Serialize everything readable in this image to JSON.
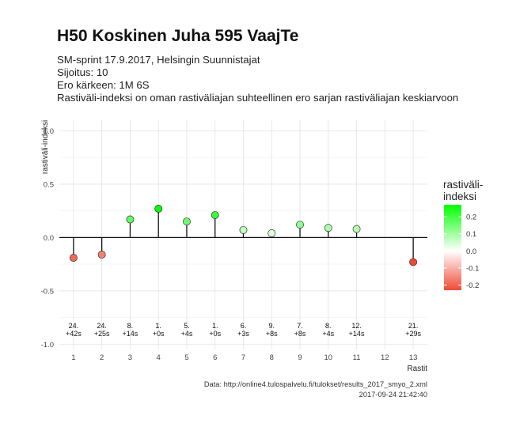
{
  "chart_data": {
    "type": "scatter",
    "title": "H50 Koskinen Juha 595 VaajTe",
    "subtitles": [
      "SM-sprint 17.9.2017, Helsingin Suunnistajat",
      "Sijoitus: 10",
      "Ero kärkeen: 1M 6S",
      "Rastiväli-indeksi on oman rastiväliajan suhteellinen ero sarjan rastiväliajan keskiarvoon"
    ],
    "xlabel": "Rastit",
    "ylabel": "rastiväli-indeksi",
    "xlim": [
      0.5,
      13.5
    ],
    "ylim": [
      -1.05,
      1.1
    ],
    "x_ticks": [
      "1",
      "2",
      "3",
      "4",
      "5",
      "6",
      "7",
      "8",
      "9",
      "10",
      "11",
      "12",
      "13"
    ],
    "y_ticks": [
      "1.0",
      "0.5",
      "0.0",
      "-0.5",
      "-1.0"
    ],
    "grid": true,
    "points": [
      {
        "x": 1,
        "y": -0.19,
        "rank": "24.",
        "diff": "+42s"
      },
      {
        "x": 2,
        "y": -0.16,
        "rank": "24.",
        "diff": "+25s"
      },
      {
        "x": 3,
        "y": 0.17,
        "rank": "8.",
        "diff": "+14s"
      },
      {
        "x": 4,
        "y": 0.27,
        "rank": "1.",
        "diff": "+0s"
      },
      {
        "x": 5,
        "y": 0.15,
        "rank": "5.",
        "diff": "+4s"
      },
      {
        "x": 6,
        "y": 0.21,
        "rank": "1.",
        "diff": "+0s"
      },
      {
        "x": 7,
        "y": 0.07,
        "rank": "6.",
        "diff": "+3s"
      },
      {
        "x": 8,
        "y": 0.04,
        "rank": "9.",
        "diff": "+8s"
      },
      {
        "x": 9,
        "y": 0.12,
        "rank": "7.",
        "diff": "+8s"
      },
      {
        "x": 10,
        "y": 0.09,
        "rank": "8.",
        "diff": "+4s"
      },
      {
        "x": 11,
        "y": 0.08,
        "rank": "12.",
        "diff": "+14s"
      },
      {
        "x": 13,
        "y": -0.23,
        "rank": "21.",
        "diff": "+29s"
      }
    ],
    "legend": {
      "title_line1": "rastiväli-",
      "title_line2": "indeksi",
      "placement": "right",
      "range": [
        -0.23,
        0.27
      ],
      "ticks": [
        "0.2",
        "0.1",
        "0.0",
        "-0.1",
        "-0.2"
      ],
      "tick_values": [
        0.2,
        0.1,
        0.0,
        -0.1,
        -0.2
      ]
    },
    "colors": {
      "positive": "#00ff00",
      "zero": "#ffffff",
      "negative": "#f04a36",
      "stem": "#111111"
    },
    "caption_line1": "Data: http://online4.tulospalvelu.fi/tulokset/results_2017_smyo_2.xml",
    "caption_line2": "2017-09-24 21:42:40"
  }
}
